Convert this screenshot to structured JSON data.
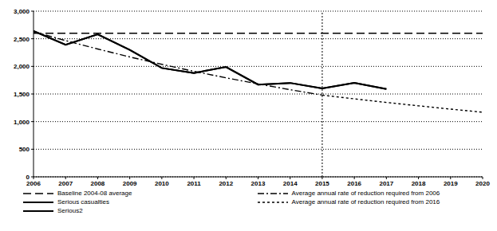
{
  "chart_data": {
    "type": "line",
    "x": [
      2006,
      2007,
      2008,
      2009,
      2010,
      2011,
      2012,
      2013,
      2014,
      2015,
      2016,
      2017,
      2018,
      2019,
      2020
    ],
    "xlim": [
      2006,
      2020
    ],
    "xticks": [
      2006,
      2007,
      2008,
      2009,
      2010,
      2011,
      2012,
      2013,
      2014,
      2015,
      2016,
      2017,
      2018,
      2019,
      2020
    ],
    "ylim": [
      0,
      3000
    ],
    "yticks": [
      0,
      500,
      {
        "value": 1000,
        "label": "1,000"
      },
      {
        "value": 1500,
        "label": "1,500"
      },
      {
        "value": 2000,
        "label": "2,000"
      },
      {
        "value": 2500,
        "label": "2,500"
      },
      {
        "value": 3000,
        "label": "3,000"
      }
    ],
    "grid": true,
    "legend": "bottom",
    "vline": 2015,
    "series": [
      {
        "name": "Baseline 2004-08 average",
        "color": "#000000",
        "line_style": "dashed",
        "values": [
          2600,
          2600,
          2600,
          2600,
          2600,
          2600,
          2600,
          2600,
          2600,
          2600,
          2600,
          2600,
          2600,
          2600,
          2600
        ]
      },
      {
        "name": "Average annual rate of reduction required from 2006",
        "color": "#000000",
        "line_style": "dashdot",
        "values": [
          2630,
          2467,
          2315,
          2171,
          2037,
          1911,
          1793,
          1682,
          1578,
          1480,
          null,
          null,
          null,
          null,
          null
        ]
      },
      {
        "name": "Serious casualties",
        "color": "#000000",
        "line_style": "solid",
        "values": [
          2640,
          2390,
          2580,
          2300,
          1970,
          1880,
          1990,
          1670,
          1700,
          1600,
          1700,
          1590,
          null,
          null,
          null
        ]
      },
      {
        "name": "Average annual rate of reduction required from 2016",
        "color": "#000000",
        "line_style": "dotted",
        "values": [
          null,
          null,
          null,
          null,
          null,
          null,
          null,
          null,
          null,
          1480,
          1412,
          1347,
          1286,
          1226,
          1170
        ]
      },
      {
        "name": "Serious2",
        "color": "#000000",
        "line_style": "solid",
        "values": [
          2640,
          2390,
          2580,
          2300,
          1970,
          1880,
          1990,
          1670,
          1700,
          1600,
          1700,
          1590,
          null,
          null,
          null
        ]
      }
    ]
  }
}
